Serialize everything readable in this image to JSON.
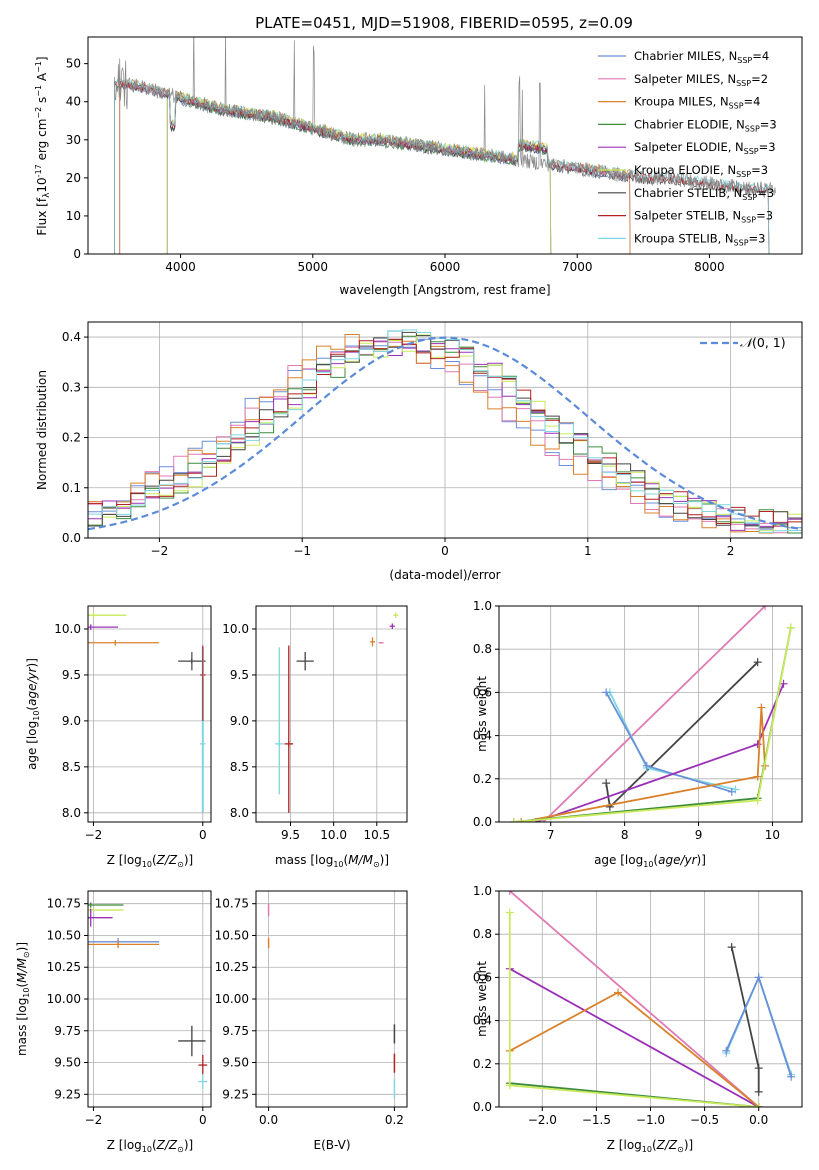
{
  "title": "PLATE=0451, MJD=51908, FIBERID=0595, z=0.09",
  "colors": {
    "chabrier_miles": "#6a8fd8",
    "salpeter_miles": "#e07ab3",
    "kroupa_miles": "#d9822b",
    "chabrier_elodie": "#3c8c3c",
    "salpeter_elodie": "#9b30b8",
    "kroupa_elodie": "#c9ea5a",
    "chabrier_stelib": "#444444",
    "salpeter_stelib": "#b22222",
    "kroupa_stelib": "#7fd6e0",
    "data": "#888888",
    "normal": "#5b8bd9"
  },
  "legend": [
    {
      "key": "chabrier_miles",
      "label": "Chabrier MILES, N",
      "sub": "SSP",
      "suffix": "=4"
    },
    {
      "key": "salpeter_miles",
      "label": "Salpeter MILES, N",
      "sub": "SSP",
      "suffix": "=2"
    },
    {
      "key": "kroupa_miles",
      "label": "Kroupa MILES, N",
      "sub": "SSP",
      "suffix": "=4"
    },
    {
      "key": "chabrier_elodie",
      "label": "Chabrier ELODIE, N",
      "sub": "SSP",
      "suffix": "=3"
    },
    {
      "key": "salpeter_elodie",
      "label": "Salpeter ELODIE, N",
      "sub": "SSP",
      "suffix": "=3"
    },
    {
      "key": "kroupa_elodie",
      "label": "Kroupa ELODIE, N",
      "sub": "SSP",
      "suffix": "=3"
    },
    {
      "key": "chabrier_stelib",
      "label": "Chabrier STELIB, N",
      "sub": "SSP",
      "suffix": "=3"
    },
    {
      "key": "salpeter_stelib",
      "label": "Salpeter STELIB, N",
      "sub": "SSP",
      "suffix": "=3"
    },
    {
      "key": "kroupa_stelib",
      "label": "Kroupa STELIB, N",
      "sub": "SSP",
      "suffix": "=3"
    }
  ],
  "chart_data": [
    {
      "id": "spectrum",
      "type": "line",
      "xlabel": "wavelength [Angstrom, rest frame]",
      "ylabel": "Flux [f",
      "ylabel_rest": "10",
      "ylabel_exp": "-17",
      "ylabel_tail": " erg cm",
      "xlim": [
        3300,
        8700
      ],
      "ylim": [
        0,
        57
      ],
      "xticks": [
        4000,
        5000,
        6000,
        7000,
        8000
      ],
      "yticks": [
        0,
        10,
        20,
        30,
        40,
        50
      ],
      "continuum": [
        [
          3500,
          45
        ],
        [
          3700,
          44
        ],
        [
          3900,
          42
        ],
        [
          4100,
          40
        ],
        [
          4300,
          38
        ],
        [
          4500,
          37
        ],
        [
          4700,
          36
        ],
        [
          4900,
          34
        ],
        [
          5100,
          32
        ],
        [
          5300,
          30
        ],
        [
          5500,
          30
        ],
        [
          5700,
          29
        ],
        [
          5900,
          28
        ],
        [
          6100,
          27
        ],
        [
          6300,
          26
        ],
        [
          6500,
          25
        ],
        [
          6700,
          24
        ],
        [
          6900,
          23
        ],
        [
          7100,
          22
        ],
        [
          7300,
          21
        ],
        [
          7500,
          20
        ],
        [
          7700,
          20
        ],
        [
          7900,
          19
        ],
        [
          8100,
          18
        ],
        [
          8300,
          17
        ],
        [
          8500,
          17
        ]
      ]
    },
    {
      "id": "residuals",
      "type": "line",
      "xlabel": "(data-model)/error",
      "ylabel": "Normed distribution",
      "xlim": [
        -2.5,
        2.5
      ],
      "ylim": [
        0,
        0.43
      ],
      "xticks": [
        -2,
        -1,
        0,
        1,
        2
      ],
      "yticks": [
        0.0,
        0.1,
        0.2,
        0.3,
        0.4
      ],
      "normal_label": "N(0, 1)"
    },
    {
      "id": "age_vs_Z",
      "type": "scatter",
      "xlabel": "Z [log",
      "ylabel": "age  [log",
      "xlim": [
        -2.1,
        0.15
      ],
      "ylim": [
        7.9,
        10.25
      ],
      "xticks": [
        -2,
        0
      ],
      "yticks": [
        8.0,
        8.5,
        9.0,
        9.5,
        10.0
      ],
      "points": [
        {
          "key": "kroupa_elodie",
          "x": -2.0,
          "y": 10.15,
          "xerr": 0.6
        },
        {
          "key": "salpeter_elodie",
          "x": -2.05,
          "y": 10.02,
          "xerr": 0.5
        },
        {
          "key": "kroupa_miles",
          "x": -1.6,
          "y": 9.85,
          "xerr": 0.8
        },
        {
          "key": "chabrier_stelib",
          "x": -0.2,
          "y": 9.65,
          "xerr": 0.25
        },
        {
          "key": "salpeter_stelib",
          "x": 0.0,
          "y": 9.5,
          "xerr": 0.05
        },
        {
          "key": "kroupa_stelib",
          "x": 0.0,
          "y": 8.75,
          "xerr": 0.05
        }
      ]
    },
    {
      "id": "age_vs_mass",
      "type": "scatter",
      "xlabel": "mass [log",
      "xlim": [
        9.1,
        10.85
      ],
      "ylim": [
        7.9,
        10.25
      ],
      "xticks": [
        9.5,
        10.0,
        10.5
      ],
      "yticks": [
        8.0,
        8.5,
        9.0,
        9.5,
        10.0
      ]
    },
    {
      "id": "weight_vs_age",
      "type": "line",
      "xlabel": "age  [log",
      "ylabel": "mass weight",
      "xlim": [
        6.3,
        10.4
      ],
      "ylim": [
        0,
        1
      ],
      "xticks": [
        7,
        8,
        9,
        10
      ],
      "yticks": [
        0.0,
        0.2,
        0.4,
        0.6,
        0.8,
        1.0
      ],
      "series": [
        {
          "key": "salpeter_miles",
          "points": [
            [
              6.9,
              0.0
            ],
            [
              9.9,
              1.0
            ]
          ]
        },
        {
          "key": "chabrier_stelib",
          "points": [
            [
              7.75,
              0.18
            ],
            [
              7.8,
              0.07
            ],
            [
              9.8,
              0.74
            ]
          ]
        },
        {
          "key": "kroupa_stelib",
          "points": [
            [
              7.8,
              0.6
            ],
            [
              8.3,
              0.25
            ],
            [
              9.5,
              0.15
            ]
          ]
        },
        {
          "key": "chabrier_miles",
          "points": [
            [
              7.75,
              0.6
            ],
            [
              8.3,
              0.26
            ],
            [
              9.45,
              0.14
            ]
          ]
        },
        {
          "key": "salpeter_elodie",
          "points": [
            [
              6.8,
              0.0
            ],
            [
              9.8,
              0.36
            ],
            [
              10.15,
              0.64
            ]
          ]
        },
        {
          "key": "kroupa_miles",
          "points": [
            [
              6.6,
              0.0
            ],
            [
              9.8,
              0.21
            ],
            [
              9.85,
              0.53
            ],
            [
              9.9,
              0.26
            ]
          ]
        },
        {
          "key": "chabrier_elodie",
          "points": [
            [
              6.5,
              0.0
            ],
            [
              9.8,
              0.11
            ],
            [
              10.25,
              0.9
            ]
          ]
        },
        {
          "key": "kroupa_elodie",
          "points": [
            [
              6.5,
              0.0
            ],
            [
              9.8,
              0.1
            ],
            [
              10.25,
              0.9
            ]
          ]
        }
      ]
    },
    {
      "id": "mass_vs_Z",
      "type": "scatter",
      "xlabel": "Z [log",
      "ylabel": "mass [log",
      "xlim": [
        -2.1,
        0.15
      ],
      "ylim": [
        9.15,
        10.85
      ],
      "xticks": [
        -2,
        0
      ],
      "yticks": [
        9.25,
        9.5,
        9.75,
        10.0,
        10.25,
        10.5,
        10.75
      ]
    },
    {
      "id": "mass_vs_ebv",
      "type": "scatter",
      "xlabel": "E(B-V)",
      "xlim": [
        -0.02,
        0.22
      ],
      "ylim": [
        9.15,
        10.85
      ],
      "xticks": [
        0.0,
        0.2
      ],
      "yticks": [
        9.25,
        9.5,
        9.75,
        10.0,
        10.25,
        10.5,
        10.75
      ]
    },
    {
      "id": "weight_vs_Z",
      "type": "line",
      "xlabel": "Z [log",
      "ylabel": "mass weight",
      "xlim": [
        -2.4,
        0.4
      ],
      "ylim": [
        0,
        1
      ],
      "xticks": [
        -2.0,
        -1.5,
        -1.0,
        -0.5,
        0.0
      ],
      "yticks": [
        0.0,
        0.2,
        0.4,
        0.6,
        0.8,
        1.0
      ],
      "series": [
        {
          "key": "salpeter_miles",
          "points": [
            [
              -2.3,
              1.0
            ],
            [
              0.0,
              0.0
            ]
          ]
        },
        {
          "key": "salpeter_elodie",
          "points": [
            [
              -2.3,
              0.64
            ],
            [
              0.0,
              0.0
            ]
          ]
        },
        {
          "key": "kroupa_miles",
          "points": [
            [
              -2.3,
              0.26
            ],
            [
              -1.3,
              0.53
            ],
            [
              0.0,
              0.0
            ]
          ]
        },
        {
          "key": "chabrier_elodie",
          "points": [
            [
              -2.3,
              0.11
            ],
            [
              0.0,
              0.0
            ]
          ]
        },
        {
          "key": "kroupa_elodie",
          "points": [
            [
              -2.3,
              0.9
            ],
            [
              -2.3,
              0.1
            ],
            [
              0.0,
              0.0
            ]
          ]
        },
        {
          "key": "chabrier_stelib",
          "points": [
            [
              -0.25,
              0.74
            ],
            [
              0.0,
              0.18
            ],
            [
              0.0,
              0.07
            ]
          ]
        },
        {
          "key": "kroupa_stelib",
          "points": [
            [
              -0.3,
              0.25
            ],
            [
              0.0,
              0.6
            ],
            [
              0.3,
              0.15
            ]
          ]
        },
        {
          "key": "chabrier_miles",
          "points": [
            [
              -0.3,
              0.26
            ],
            [
              0.0,
              0.6
            ],
            [
              0.3,
              0.14
            ]
          ]
        }
      ]
    }
  ]
}
